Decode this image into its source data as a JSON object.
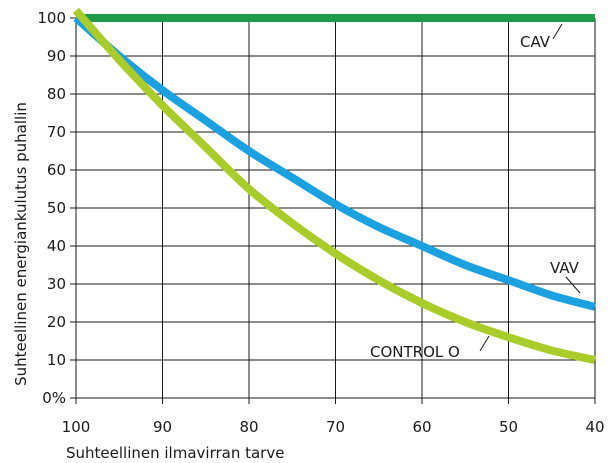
{
  "chart_data": {
    "type": "line",
    "xlabel": "Suhteellinen ilmavirran tarve",
    "ylabel": "Suhteellinen energiankulutus puhallin",
    "xlim": [
      100,
      40
    ],
    "ylim": [
      0,
      100
    ],
    "x_ticks": [
      "100",
      "90",
      "80",
      "70",
      "60",
      "50",
      "40"
    ],
    "y_ticks": [
      "0%",
      "10",
      "20",
      "30",
      "40",
      "50",
      "60",
      "70",
      "80",
      "90",
      "100"
    ],
    "grid": true,
    "series": [
      {
        "name": "CAV",
        "color": "#1e9a4a",
        "x": [
          100,
          90,
          80,
          70,
          60,
          50,
          40
        ],
        "y": [
          100,
          100,
          100,
          100,
          100,
          100,
          100
        ]
      },
      {
        "name": "VAV",
        "color": "#1ba0e0",
        "x": [
          100,
          95,
          90,
          85,
          80,
          75,
          70,
          65,
          60,
          55,
          50,
          45,
          40
        ],
        "y": [
          100,
          90,
          81,
          73,
          65,
          58,
          51,
          45,
          40,
          35,
          31,
          27,
          24
        ]
      },
      {
        "name": "CONTROL O",
        "color": "#a8cc2a",
        "x": [
          100,
          95,
          90,
          85,
          80,
          75,
          70,
          65,
          60,
          55,
          50,
          45,
          40
        ],
        "y": [
          102,
          89,
          77,
          66,
          55,
          46,
          38,
          31,
          25,
          20,
          16,
          12.5,
          10
        ]
      }
    ]
  }
}
